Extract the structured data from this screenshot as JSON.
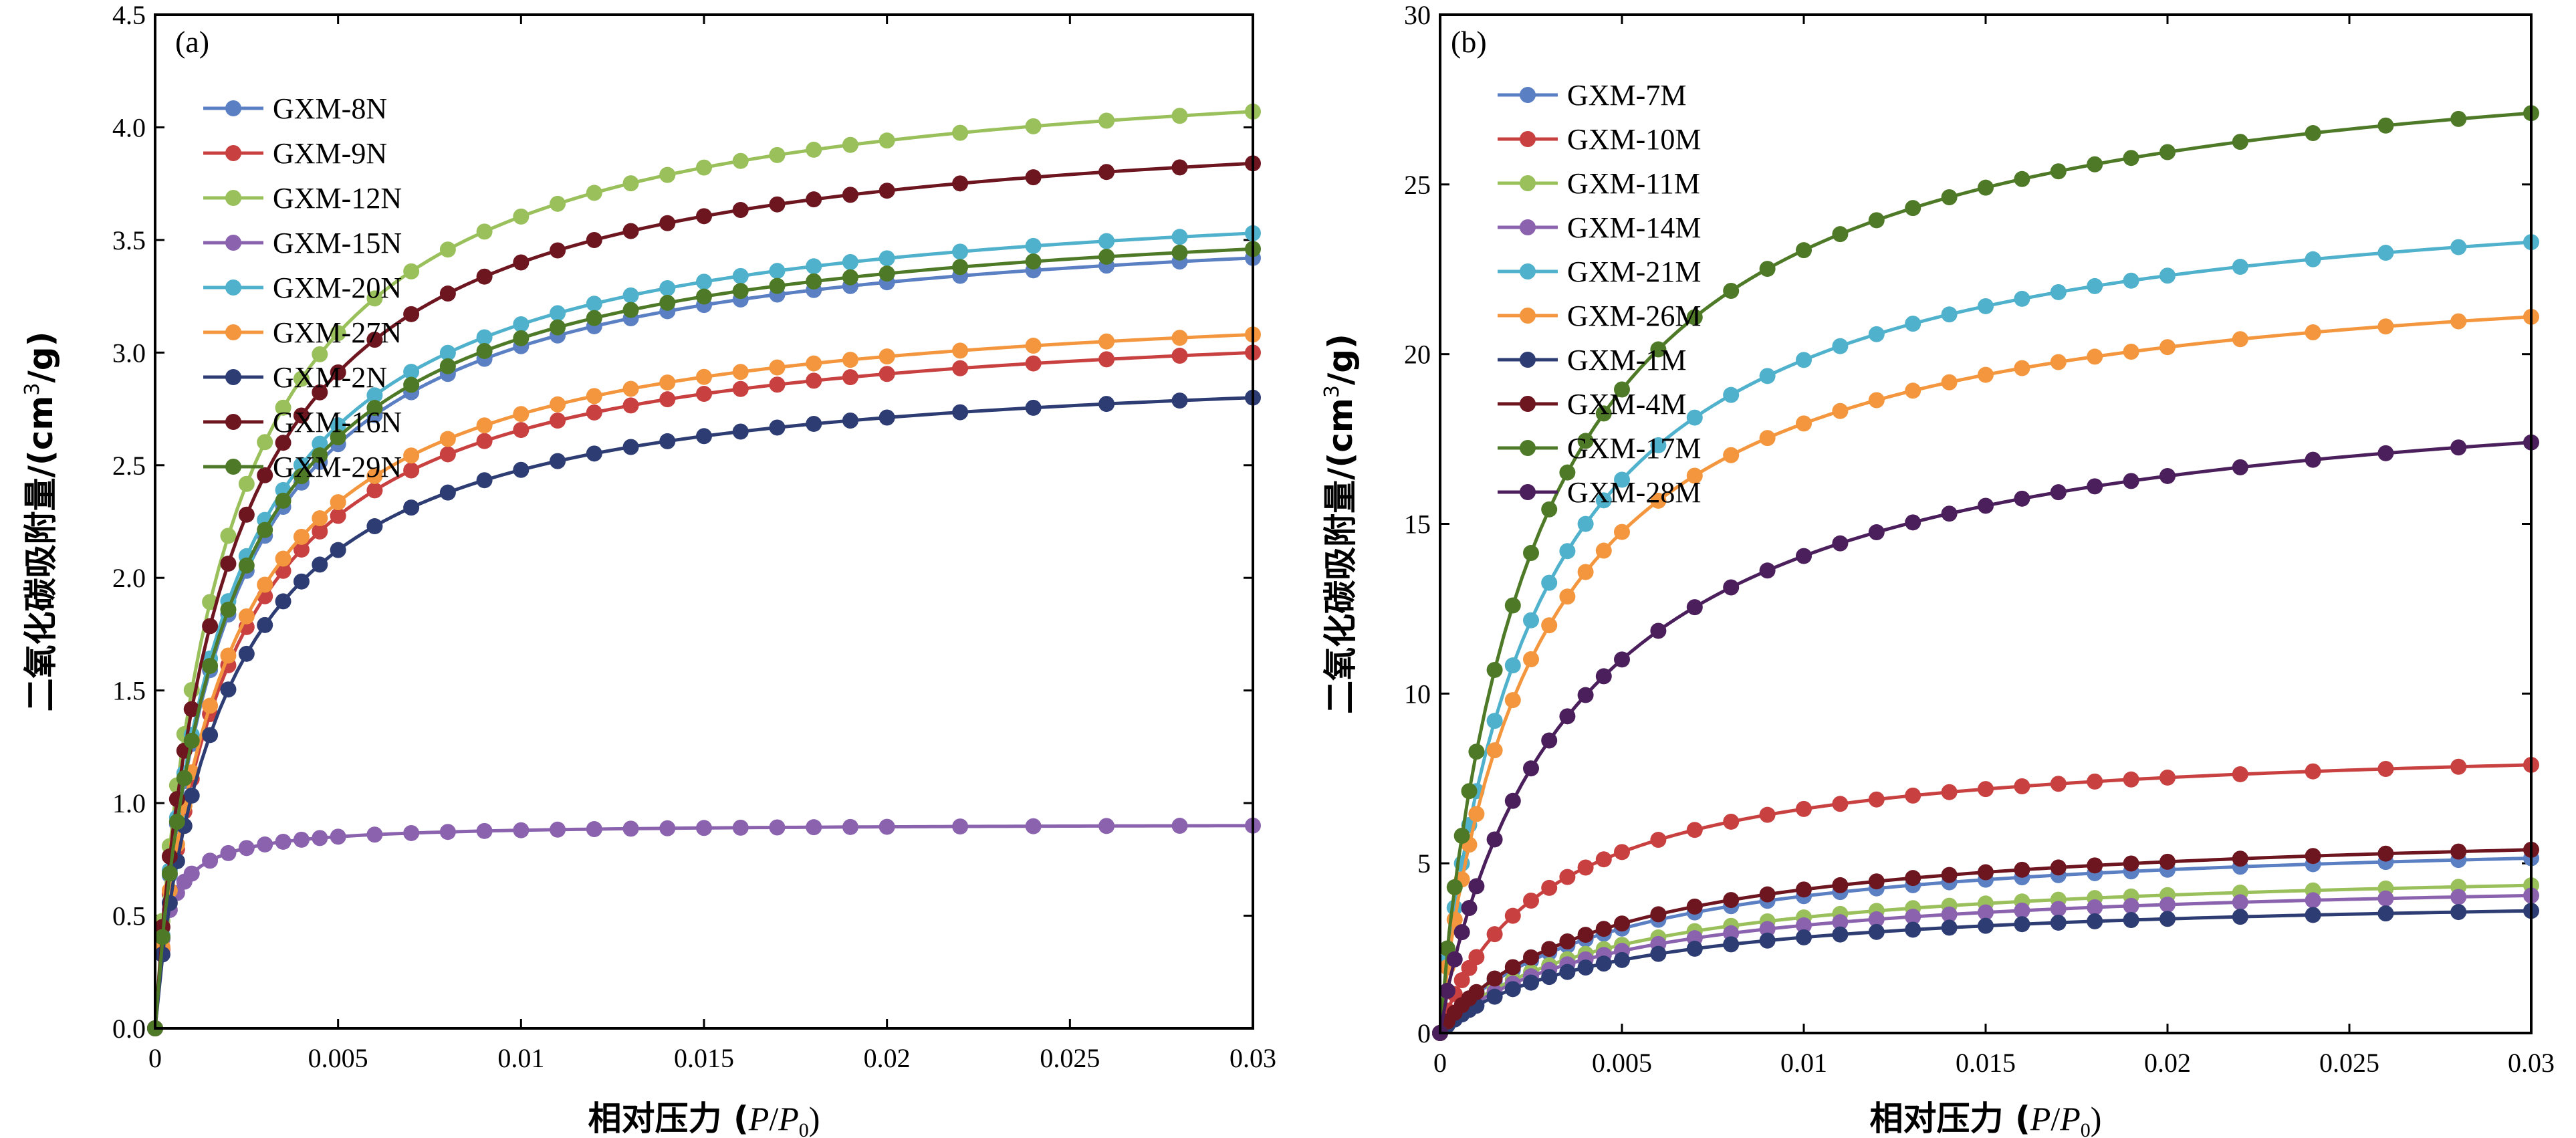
{
  "chart_data": [
    {
      "type": "line",
      "panel_label": "(a)",
      "xlabel": {
        "main": "相对压力",
        "var1": "P",
        "var2": "P",
        "sub": "0"
      },
      "ylabel": {
        "main": "二氧化碳吸附量/(cm",
        "sup": "3",
        "tail": "/g)"
      },
      "xlim": [
        0,
        0.03
      ],
      "ylim": [
        0,
        4.5
      ],
      "xticks": [
        0,
        0.005,
        0.01,
        0.015,
        0.02,
        0.025,
        0.03
      ],
      "xtick_labels": [
        "0",
        "0.005",
        "0.01",
        "0.015",
        "0.02",
        "0.025",
        "0.03"
      ],
      "yticks": [
        0,
        0.5,
        1.0,
        1.5,
        2.0,
        2.5,
        3.0,
        3.5,
        4.0,
        4.5
      ],
      "ytick_labels": [
        "0.0",
        "0.5",
        "1.0",
        "1.5",
        "2.0",
        "2.5",
        "3.0",
        "3.5",
        "4.0",
        "4.5"
      ],
      "legend_position": "top-left",
      "model": {
        "k": 0.0025,
        "n": 0.85
      },
      "series": [
        {
          "name": "GXM-8N",
          "color": "#5B7FC3",
          "y_end": 3.42
        },
        {
          "name": "GXM-9N",
          "color": "#C8403F",
          "y_end": 3.0
        },
        {
          "name": "GXM-12N",
          "color": "#99C05A",
          "y_end": 4.07
        },
        {
          "name": "GXM-15N",
          "color": "#8A62AE",
          "y_end": 0.9,
          "model": {
            "k": 0.0006,
            "n": 0.6
          }
        },
        {
          "name": "GXM-20N",
          "color": "#4FB1CB",
          "y_end": 3.53
        },
        {
          "name": "GXM-27N",
          "color": "#F3963E",
          "y_end": 3.08
        },
        {
          "name": "GXM-2N",
          "color": "#2D3C73",
          "y_end": 2.8
        },
        {
          "name": "GXM-16N",
          "color": "#6E1620",
          "y_end": 3.84
        },
        {
          "name": "GXM-29N",
          "color": "#4E7A28",
          "y_end": 3.46
        }
      ]
    },
    {
      "type": "line",
      "panel_label": "(b)",
      "xlabel": {
        "main": "相对压力",
        "var1": "P",
        "var2": "P",
        "sub": "0"
      },
      "ylabel": {
        "main": "二氧化碳吸附量/(cm",
        "sup": "3",
        "tail": "/g)"
      },
      "xlim": [
        0,
        0.03
      ],
      "ylim": [
        0,
        30
      ],
      "xticks": [
        0,
        0.005,
        0.01,
        0.015,
        0.02,
        0.025,
        0.03
      ],
      "xtick_labels": [
        "0",
        "0.005",
        "0.01",
        "0.015",
        "0.02",
        "0.025",
        "0.03"
      ],
      "yticks": [
        0,
        5,
        10,
        15,
        20,
        25,
        30
      ],
      "ytick_labels": [
        "0",
        "5",
        "10",
        "15",
        "20",
        "25",
        "30"
      ],
      "legend_position": "top-left",
      "model": {
        "k": 0.0035,
        "n": 0.85
      },
      "series": [
        {
          "name": "GXM-7M",
          "color": "#5B7FC3",
          "y_end": 5.15,
          "model": {
            "k": 0.006,
            "n": 0.85
          }
        },
        {
          "name": "GXM-10M",
          "color": "#C8403F",
          "y_end": 7.9,
          "model": {
            "k": 0.004,
            "n": 0.85
          }
        },
        {
          "name": "GXM-11M",
          "color": "#99C05A",
          "y_end": 4.35,
          "model": {
            "k": 0.006,
            "n": 0.85
          }
        },
        {
          "name": "GXM-14M",
          "color": "#8A62AE",
          "y_end": 4.05,
          "model": {
            "k": 0.006,
            "n": 0.85
          }
        },
        {
          "name": "GXM-21M",
          "color": "#4FB1CB",
          "y_end": 23.3
        },
        {
          "name": "GXM-26M",
          "color": "#F3963E",
          "y_end": 21.1
        },
        {
          "name": "GXM-1M",
          "color": "#2D3C73",
          "y_end": 3.6,
          "model": {
            "k": 0.006,
            "n": 0.85
          }
        },
        {
          "name": "GXM-4M",
          "color": "#6E1620",
          "y_end": 5.4,
          "model": {
            "k": 0.006,
            "n": 0.85
          }
        },
        {
          "name": "GXM-17M",
          "color": "#4E7A28",
          "y_end": 27.1
        },
        {
          "name": "GXM-28M",
          "color": "#4B1E5C",
          "y_end": 17.4,
          "model": {
            "k": 0.005,
            "n": 0.85
          }
        }
      ]
    }
  ],
  "x_samples": [
    0,
    0.0002,
    0.0004,
    0.0006,
    0.0008,
    0.001,
    0.0015,
    0.002,
    0.0025,
    0.003,
    0.0035,
    0.004,
    0.0045,
    0.005,
    0.006,
    0.007,
    0.008,
    0.009,
    0.01,
    0.011,
    0.012,
    0.013,
    0.014,
    0.015,
    0.016,
    0.017,
    0.018,
    0.019,
    0.02,
    0.022,
    0.024,
    0.026,
    0.028,
    0.03
  ]
}
